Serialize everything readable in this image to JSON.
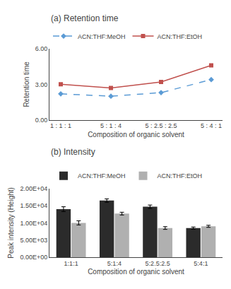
{
  "chart_data": [
    {
      "type": "line",
      "title": "(a) Retention time",
      "xlabel": "Composition of organic solvent",
      "ylabel": "Retention time",
      "categories": [
        "1 : 1 : 1",
        "5 : 1 : 4",
        "5 : 2.5 : 2.5",
        "5 : 4 : 1"
      ],
      "series": [
        {
          "name": "ACN:THF:MeOH",
          "color": "#5b9bd5",
          "marker": "diamond",
          "line_style": "dashed",
          "values": [
            2.2,
            2.0,
            2.3,
            3.4
          ]
        },
        {
          "name": "ACN:THF:EtOH",
          "color": "#c0504d",
          "marker": "square",
          "line_style": "solid",
          "values": [
            3.0,
            2.7,
            3.2,
            4.6
          ]
        }
      ],
      "ylim": [
        0.0,
        6.0
      ],
      "yticks": [
        {
          "value": 0.0,
          "label": "0.00"
        },
        {
          "value": 3.0,
          "label": "3.00"
        },
        {
          "value": 6.0,
          "label": "6.00"
        }
      ],
      "grid": false,
      "legend": "top"
    },
    {
      "type": "bar",
      "title": "(b) Intensity",
      "xlabel": "Composition of organic solvent",
      "ylabel": "Peak intensity (Height)",
      "categories": [
        "1:1:1",
        "5:1:4",
        "5:2.5:2.5",
        "5:4:1"
      ],
      "series": [
        {
          "name": "ACN:THF:MeOH",
          "color": "#2b2b2b",
          "values": [
            14000,
            16500,
            14700,
            8500
          ],
          "errors": [
            700,
            500,
            500,
            300
          ]
        },
        {
          "name": "ACN:THF:EtOH",
          "color": "#b0b0b0",
          "values": [
            10000,
            12700,
            8500,
            9000
          ],
          "errors": [
            600,
            400,
            400,
            300
          ]
        }
      ],
      "ylim": [
        0,
        20000
      ],
      "yticks": [
        {
          "value": 0,
          "label": "0.00E+00"
        },
        {
          "value": 5000,
          "label": "5.00E+03"
        },
        {
          "value": 10000,
          "label": "1.00E+04"
        },
        {
          "value": 15000,
          "label": "1.50E+04"
        },
        {
          "value": 20000,
          "label": "2.00E+04"
        }
      ],
      "grid": false,
      "legend": "top"
    }
  ]
}
